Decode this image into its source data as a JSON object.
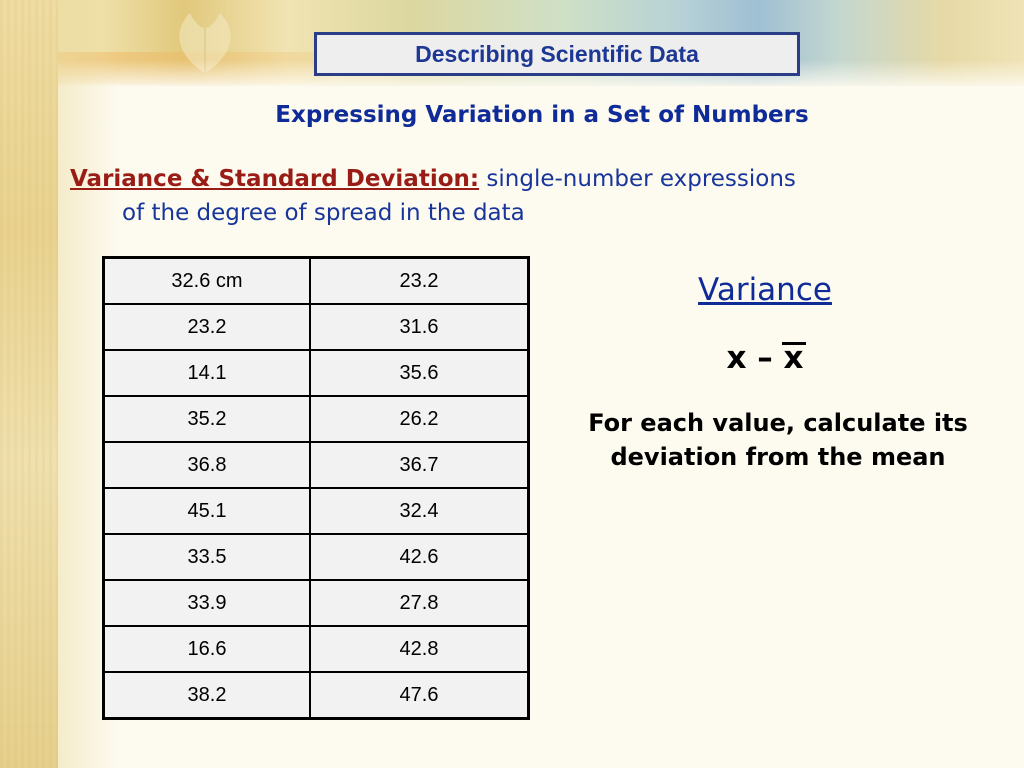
{
  "slide": {
    "title": "Describing Scientific Data",
    "subtitle": "Expressing Variation in a Set of Numbers",
    "definition": {
      "term": "Variance & Standard Deviation:",
      "text_line1": "single-number expressions",
      "text_line2": "of the degree of spread in the data"
    }
  },
  "table": {
    "rows": [
      [
        "32.6 cm",
        "23.2"
      ],
      [
        "23.2",
        "31.6"
      ],
      [
        "14.1",
        "35.6"
      ],
      [
        "35.2",
        "26.2"
      ],
      [
        "36.8",
        "36.7"
      ],
      [
        "45.1",
        "32.4"
      ],
      [
        "33.5",
        "42.6"
      ],
      [
        "33.9",
        "27.8"
      ],
      [
        "16.6",
        "42.8"
      ],
      [
        "38.2",
        "47.6"
      ]
    ]
  },
  "variance": {
    "heading": "Variance",
    "formula_x": "x",
    "formula_op": " – ",
    "formula_xbar": "x",
    "explanation_line1": "For each value, calculate its",
    "explanation_line2": "deviation from the mean"
  },
  "colors": {
    "title_text": "#1c3794",
    "body_blue": "#18359b",
    "term_red": "#9a1c16",
    "title_border": "#2a3d86"
  }
}
